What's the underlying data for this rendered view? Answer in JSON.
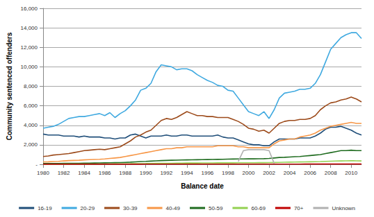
{
  "chart_data": {
    "type": "line",
    "x_label": "Balance date",
    "y_label": "Community sentenced offenders",
    "x": [
      1980,
      1980.5,
      1981,
      1981.5,
      1982,
      1982.5,
      1983,
      1983.5,
      1984,
      1984.5,
      1985,
      1985.5,
      1986,
      1986.5,
      1987,
      1987.5,
      1988,
      1988.5,
      1989,
      1989.5,
      1990,
      1990.5,
      1991,
      1991.5,
      1992,
      1992.5,
      1993,
      1993.5,
      1994,
      1994.5,
      1995,
      1995.5,
      1996,
      1996.5,
      1997,
      1997.5,
      1998,
      1998.5,
      1999,
      1999.5,
      2000,
      2000.5,
      2001,
      2001.5,
      2002,
      2002.5,
      2003,
      2003.5,
      2004,
      2004.5,
      2005,
      2005.5,
      2006,
      2006.5,
      2007,
      2007.5,
      2008,
      2008.5,
      2009,
      2009.5,
      2010,
      2010.5,
      2011
    ],
    "series": [
      {
        "name": "16-19",
        "color": "#1f4e79",
        "values": [
          3100,
          3000,
          3000,
          3000,
          2900,
          2900,
          2900,
          2800,
          2900,
          2800,
          2800,
          2800,
          2700,
          2700,
          2600,
          2700,
          2700,
          3000,
          3100,
          2900,
          2700,
          2900,
          2900,
          2900,
          3000,
          2900,
          2900,
          3000,
          3000,
          2900,
          2900,
          2900,
          2900,
          2900,
          3000,
          2800,
          2700,
          2700,
          2500,
          2300,
          2100,
          2000,
          2000,
          1900,
          1900,
          2300,
          2600,
          2600,
          2600,
          2600,
          2700,
          2700,
          2700,
          2900,
          3200,
          3600,
          3800,
          3800,
          3900,
          3700,
          3500,
          3200,
          3000
        ]
      },
      {
        "name": "20-29",
        "color": "#3fa9e0",
        "values": [
          3700,
          3800,
          3900,
          4100,
          4400,
          4700,
          4800,
          4900,
          4900,
          5000,
          5100,
          5200,
          5000,
          5300,
          4800,
          5200,
          5500,
          6000,
          6600,
          7600,
          7800,
          8300,
          9500,
          10200,
          10100,
          10000,
          9700,
          9800,
          9800,
          9600,
          9200,
          8900,
          8600,
          8400,
          8100,
          8000,
          7600,
          7500,
          6800,
          6100,
          5400,
          5200,
          5000,
          5400,
          4700,
          5600,
          6800,
          7300,
          7400,
          7500,
          7700,
          7700,
          7800,
          8300,
          9200,
          10500,
          11800,
          12400,
          13000,
          13300,
          13500,
          13500,
          12900
        ]
      },
      {
        "name": "30-39",
        "color": "#9c4a1a",
        "values": [
          800,
          850,
          950,
          1000,
          1050,
          1100,
          1200,
          1300,
          1400,
          1450,
          1500,
          1550,
          1500,
          1600,
          1700,
          1800,
          2100,
          2400,
          2800,
          3000,
          3300,
          3500,
          4000,
          4500,
          4700,
          4600,
          4800,
          5100,
          5400,
          5200,
          5000,
          5000,
          4900,
          4900,
          4800,
          4800,
          4800,
          4600,
          4400,
          4100,
          3700,
          3600,
          3400,
          3500,
          3200,
          3700,
          4200,
          4400,
          4500,
          4500,
          4600,
          4600,
          4700,
          5000,
          5600,
          6000,
          6300,
          6400,
          6600,
          6700,
          6900,
          6700,
          6400
        ]
      },
      {
        "name": "40-49",
        "color": "#f79646",
        "values": [
          250,
          260,
          280,
          300,
          350,
          380,
          400,
          420,
          450,
          480,
          500,
          520,
          550,
          600,
          650,
          700,
          800,
          900,
          1000,
          1100,
          1200,
          1300,
          1400,
          1500,
          1600,
          1600,
          1700,
          1700,
          1800,
          1800,
          1800,
          1800,
          1800,
          1800,
          1900,
          1900,
          1900,
          1900,
          1800,
          1800,
          1700,
          1700,
          1700,
          1700,
          1700,
          2100,
          2400,
          2500,
          2600,
          2600,
          2800,
          2900,
          3000,
          3200,
          3500,
          3700,
          3900,
          4000,
          4100,
          4200,
          4300,
          4200,
          4200
        ]
      },
      {
        "name": "50-59",
        "color": "#1e6b1e",
        "values": [
          80,
          80,
          90,
          90,
          100,
          100,
          110,
          110,
          120,
          120,
          130,
          140,
          150,
          160,
          170,
          180,
          200,
          220,
          250,
          280,
          300,
          330,
          360,
          380,
          400,
          420,
          430,
          440,
          450,
          460,
          470,
          480,
          490,
          500,
          510,
          520,
          530,
          540,
          550,
          550,
          560,
          560,
          570,
          580,
          600,
          650,
          700,
          720,
          750,
          780,
          800,
          850,
          900,
          950,
          1000,
          1100,
          1200,
          1300,
          1400,
          1400,
          1450,
          1400,
          1400
        ]
      },
      {
        "name": "60-69",
        "color": "#92d050",
        "values": [
          20,
          20,
          20,
          20,
          25,
          25,
          25,
          30,
          30,
          30,
          35,
          35,
          40,
          40,
          45,
          50,
          55,
          60,
          70,
          75,
          80,
          90,
          100,
          100,
          110,
          110,
          120,
          120,
          130,
          130,
          130,
          140,
          140,
          140,
          150,
          150,
          150,
          150,
          160,
          160,
          160,
          160,
          170,
          170,
          180,
          190,
          200,
          210,
          220,
          230,
          240,
          250,
          260,
          270,
          280,
          300,
          320,
          340,
          350,
          360,
          370,
          360,
          350
        ]
      },
      {
        "name": "70+",
        "color": "#c00000",
        "values": [
          10,
          10,
          10,
          10,
          10,
          10,
          10,
          10,
          10,
          10,
          10,
          10,
          10,
          10,
          10,
          10,
          10,
          10,
          10,
          10,
          15,
          15,
          15,
          15,
          15,
          15,
          15,
          15,
          15,
          15,
          15,
          15,
          15,
          15,
          15,
          15,
          15,
          15,
          15,
          15,
          20,
          20,
          20,
          20,
          20,
          20,
          20,
          20,
          20,
          20,
          20,
          30,
          30,
          30,
          30,
          30,
          30,
          30,
          30,
          30,
          30,
          30,
          30
        ]
      },
      {
        "name": "Unknown",
        "color": "#b0b0b0",
        "values": [
          null,
          null,
          null,
          null,
          null,
          null,
          null,
          null,
          null,
          null,
          null,
          null,
          null,
          null,
          null,
          null,
          null,
          null,
          null,
          null,
          null,
          null,
          null,
          null,
          null,
          null,
          null,
          null,
          null,
          null,
          null,
          null,
          null,
          null,
          null,
          null,
          null,
          null,
          300,
          1400,
          1500,
          1500,
          1500,
          1500,
          1400,
          100,
          null,
          null,
          null,
          null,
          null,
          null,
          null,
          null,
          null,
          null,
          null,
          null,
          null,
          null,
          null,
          null,
          null
        ]
      }
    ],
    "xlim": [
      1980,
      2011
    ],
    "xticks": [
      1980,
      1982,
      1984,
      1986,
      1988,
      1990,
      1992,
      1994,
      1996,
      1998,
      2000,
      2002,
      2004,
      2006,
      2008,
      2010
    ],
    "ylim": [
      0,
      16000
    ],
    "yticks": [
      {
        "value": 0,
        "label": "-"
      },
      {
        "value": 2000,
        "label": "2,000"
      },
      {
        "value": 4000,
        "label": "4,000"
      },
      {
        "value": 6000,
        "label": "6,000"
      },
      {
        "value": 8000,
        "label": "8,000"
      },
      {
        "value": 10000,
        "label": "10,000"
      },
      {
        "value": 12000,
        "label": "12,000"
      },
      {
        "value": 14000,
        "label": "14,000"
      },
      {
        "value": 16000,
        "label": "16,000"
      }
    ],
    "grid": true,
    "legend": "bottom"
  }
}
